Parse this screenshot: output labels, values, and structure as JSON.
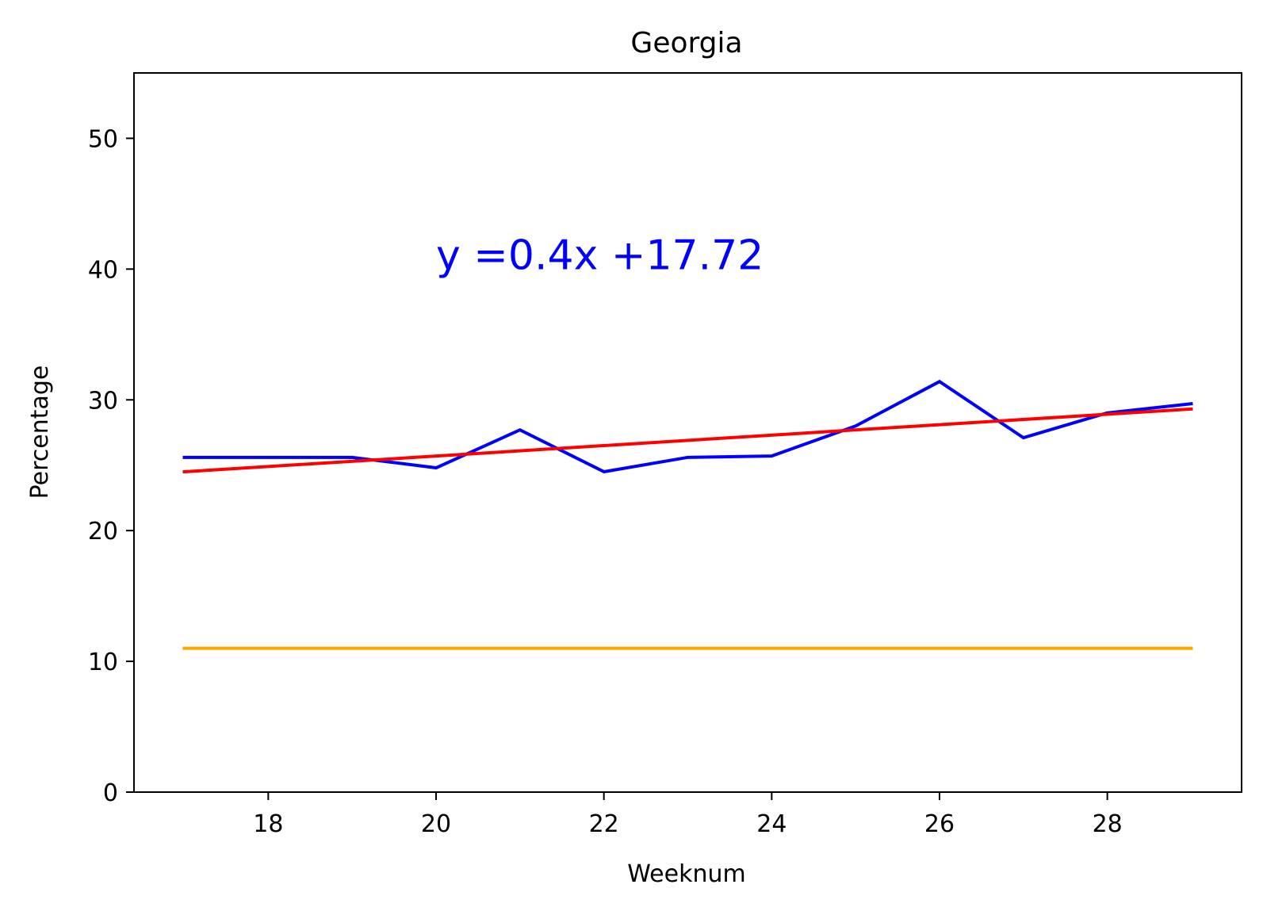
{
  "chart_data": {
    "type": "line",
    "title": "Georgia",
    "xlabel": "Weeknum",
    "ylabel": "Percentage",
    "xlim": [
      16.4,
      29.6
    ],
    "ylim": [
      0,
      55
    ],
    "xticks": [
      18,
      20,
      22,
      24,
      26,
      28
    ],
    "yticks": [
      0,
      10,
      20,
      30,
      40,
      50
    ],
    "grid": false,
    "annotation": {
      "text": "y =0.4x +17.72",
      "x": 20,
      "y": 40,
      "color": "#0000ff"
    },
    "series": [
      {
        "color": "#0000ff",
        "x": [
          17,
          18,
          19,
          20,
          21,
          22,
          23,
          24,
          25,
          26,
          27,
          28,
          29
        ],
        "y": [
          25.6,
          25.6,
          25.6,
          24.8,
          27.7,
          24.5,
          25.6,
          25.7,
          28.0,
          31.4,
          27.1,
          29.0,
          29.7
        ]
      },
      {
        "color": "#ff0000",
        "x": [
          17,
          29
        ],
        "y": [
          24.5,
          29.3
        ]
      },
      {
        "color": "#ffa500",
        "x": [
          17,
          29
        ],
        "y": [
          11,
          11
        ]
      }
    ]
  }
}
